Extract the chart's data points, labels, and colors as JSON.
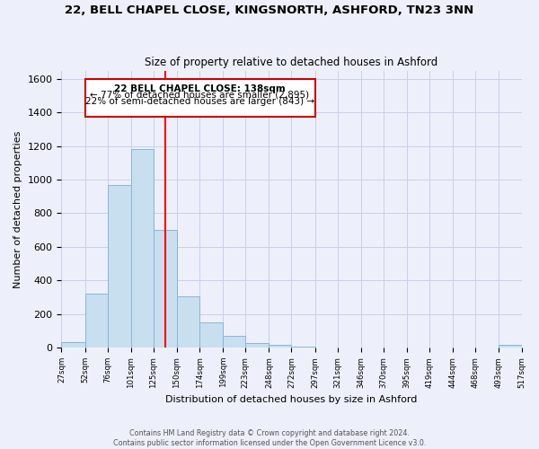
{
  "title": "22, BELL CHAPEL CLOSE, KINGSNORTH, ASHFORD, TN23 3NN",
  "subtitle": "Size of property relative to detached houses in Ashford",
  "xlabel": "Distribution of detached houses by size in Ashford",
  "ylabel": "Number of detached properties",
  "bar_color": "#c8dff0",
  "bar_edge_color": "#8ab4d4",
  "vline_x": 138,
  "vline_color": "red",
  "annotation_title": "22 BELL CHAPEL CLOSE: 138sqm",
  "annotation_line1": "← 77% of detached houses are smaller (2,895)",
  "annotation_line2": "22% of semi-detached houses are larger (843) →",
  "bin_edges": [
    27,
    52,
    76,
    101,
    125,
    150,
    174,
    199,
    223,
    248,
    272,
    297,
    321,
    346,
    370,
    395,
    419,
    444,
    468,
    493,
    517
  ],
  "bar_heights": [
    30,
    320,
    970,
    1185,
    700,
    305,
    150,
    70,
    25,
    15,
    5,
    3,
    2,
    1,
    1,
    0,
    0,
    0,
    0,
    15
  ],
  "ylim": [
    0,
    1650
  ],
  "yticks": [
    0,
    200,
    400,
    600,
    800,
    1000,
    1200,
    1400,
    1600
  ],
  "footer1": "Contains HM Land Registry data © Crown copyright and database right 2024.",
  "footer2": "Contains public sector information licensed under the Open Government Licence v3.0.",
  "bg_color": "#edf0fb",
  "plot_bg_color": "#edf0fb",
  "grid_color": "#c8cfe8"
}
